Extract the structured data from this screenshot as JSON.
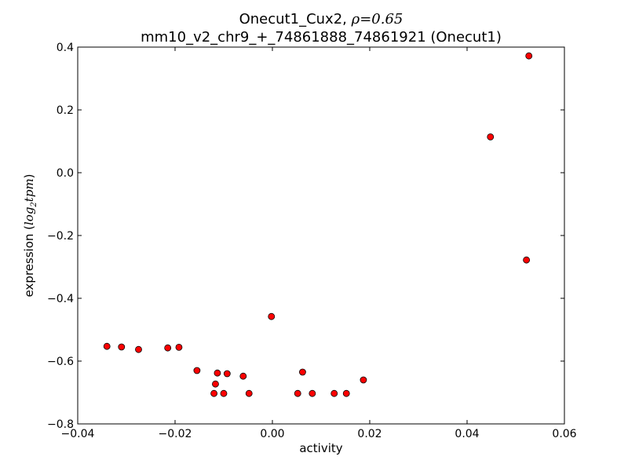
{
  "chart_data": {
    "type": "scatter",
    "title": "Onecut1_Cux2, ρ=0.65",
    "title_prefix": "Onecut1_Cux2, ",
    "title_rho": "ρ",
    "title_eq": "=0.65",
    "subtitle": "mm10_v2_chr9_+_74861888_74861921 (Onecut1)",
    "xlabel": "activity",
    "ylabel": "expression (log₂tpm)",
    "ylabel_prefix": "expression (",
    "ylabel_log": "log",
    "ylabel_sub": "2",
    "ylabel_unit": "tpm",
    "ylabel_suffix": ")",
    "xlim": [
      -0.04,
      0.06
    ],
    "ylim": [
      -0.8,
      0.4
    ],
    "xticks": [
      -0.04,
      -0.02,
      0.0,
      0.02,
      0.04,
      0.06
    ],
    "xtick_labels": [
      "−0.04",
      "−0.02",
      "0.00",
      "0.02",
      "0.04",
      "0.06"
    ],
    "yticks": [
      0.4,
      0.2,
      0.0,
      -0.2,
      -0.4,
      -0.6,
      -0.8
    ],
    "ytick_labels": [
      "0.4",
      "0.2",
      "0.0",
      "−0.2",
      "−0.4",
      "−0.6",
      "−0.8"
    ],
    "grid": false,
    "marker_color": "#ff0000",
    "marker_edge_color": "#000000",
    "points": [
      {
        "x": -0.034,
        "y": -0.553
      },
      {
        "x": -0.031,
        "y": -0.555
      },
      {
        "x": -0.0275,
        "y": -0.563
      },
      {
        "x": -0.0215,
        "y": -0.558
      },
      {
        "x": -0.0192,
        "y": -0.556
      },
      {
        "x": -0.0155,
        "y": -0.63
      },
      {
        "x": -0.0117,
        "y": -0.673
      },
      {
        "x": -0.012,
        "y": -0.703
      },
      {
        "x": -0.0113,
        "y": -0.638
      },
      {
        "x": -0.01,
        "y": -0.703
      },
      {
        "x": -0.0093,
        "y": -0.64
      },
      {
        "x": -0.006,
        "y": -0.648
      },
      {
        "x": -0.0048,
        "y": -0.703
      },
      {
        "x": -0.0002,
        "y": -0.458
      },
      {
        "x": 0.0052,
        "y": -0.703
      },
      {
        "x": 0.0062,
        "y": -0.635
      },
      {
        "x": 0.0082,
        "y": -0.703
      },
      {
        "x": 0.0127,
        "y": -0.703
      },
      {
        "x": 0.0152,
        "y": -0.703
      },
      {
        "x": 0.0187,
        "y": -0.66
      },
      {
        "x": 0.0448,
        "y": 0.114
      },
      {
        "x": 0.0522,
        "y": -0.278
      },
      {
        "x": 0.0527,
        "y": 0.372
      }
    ]
  }
}
